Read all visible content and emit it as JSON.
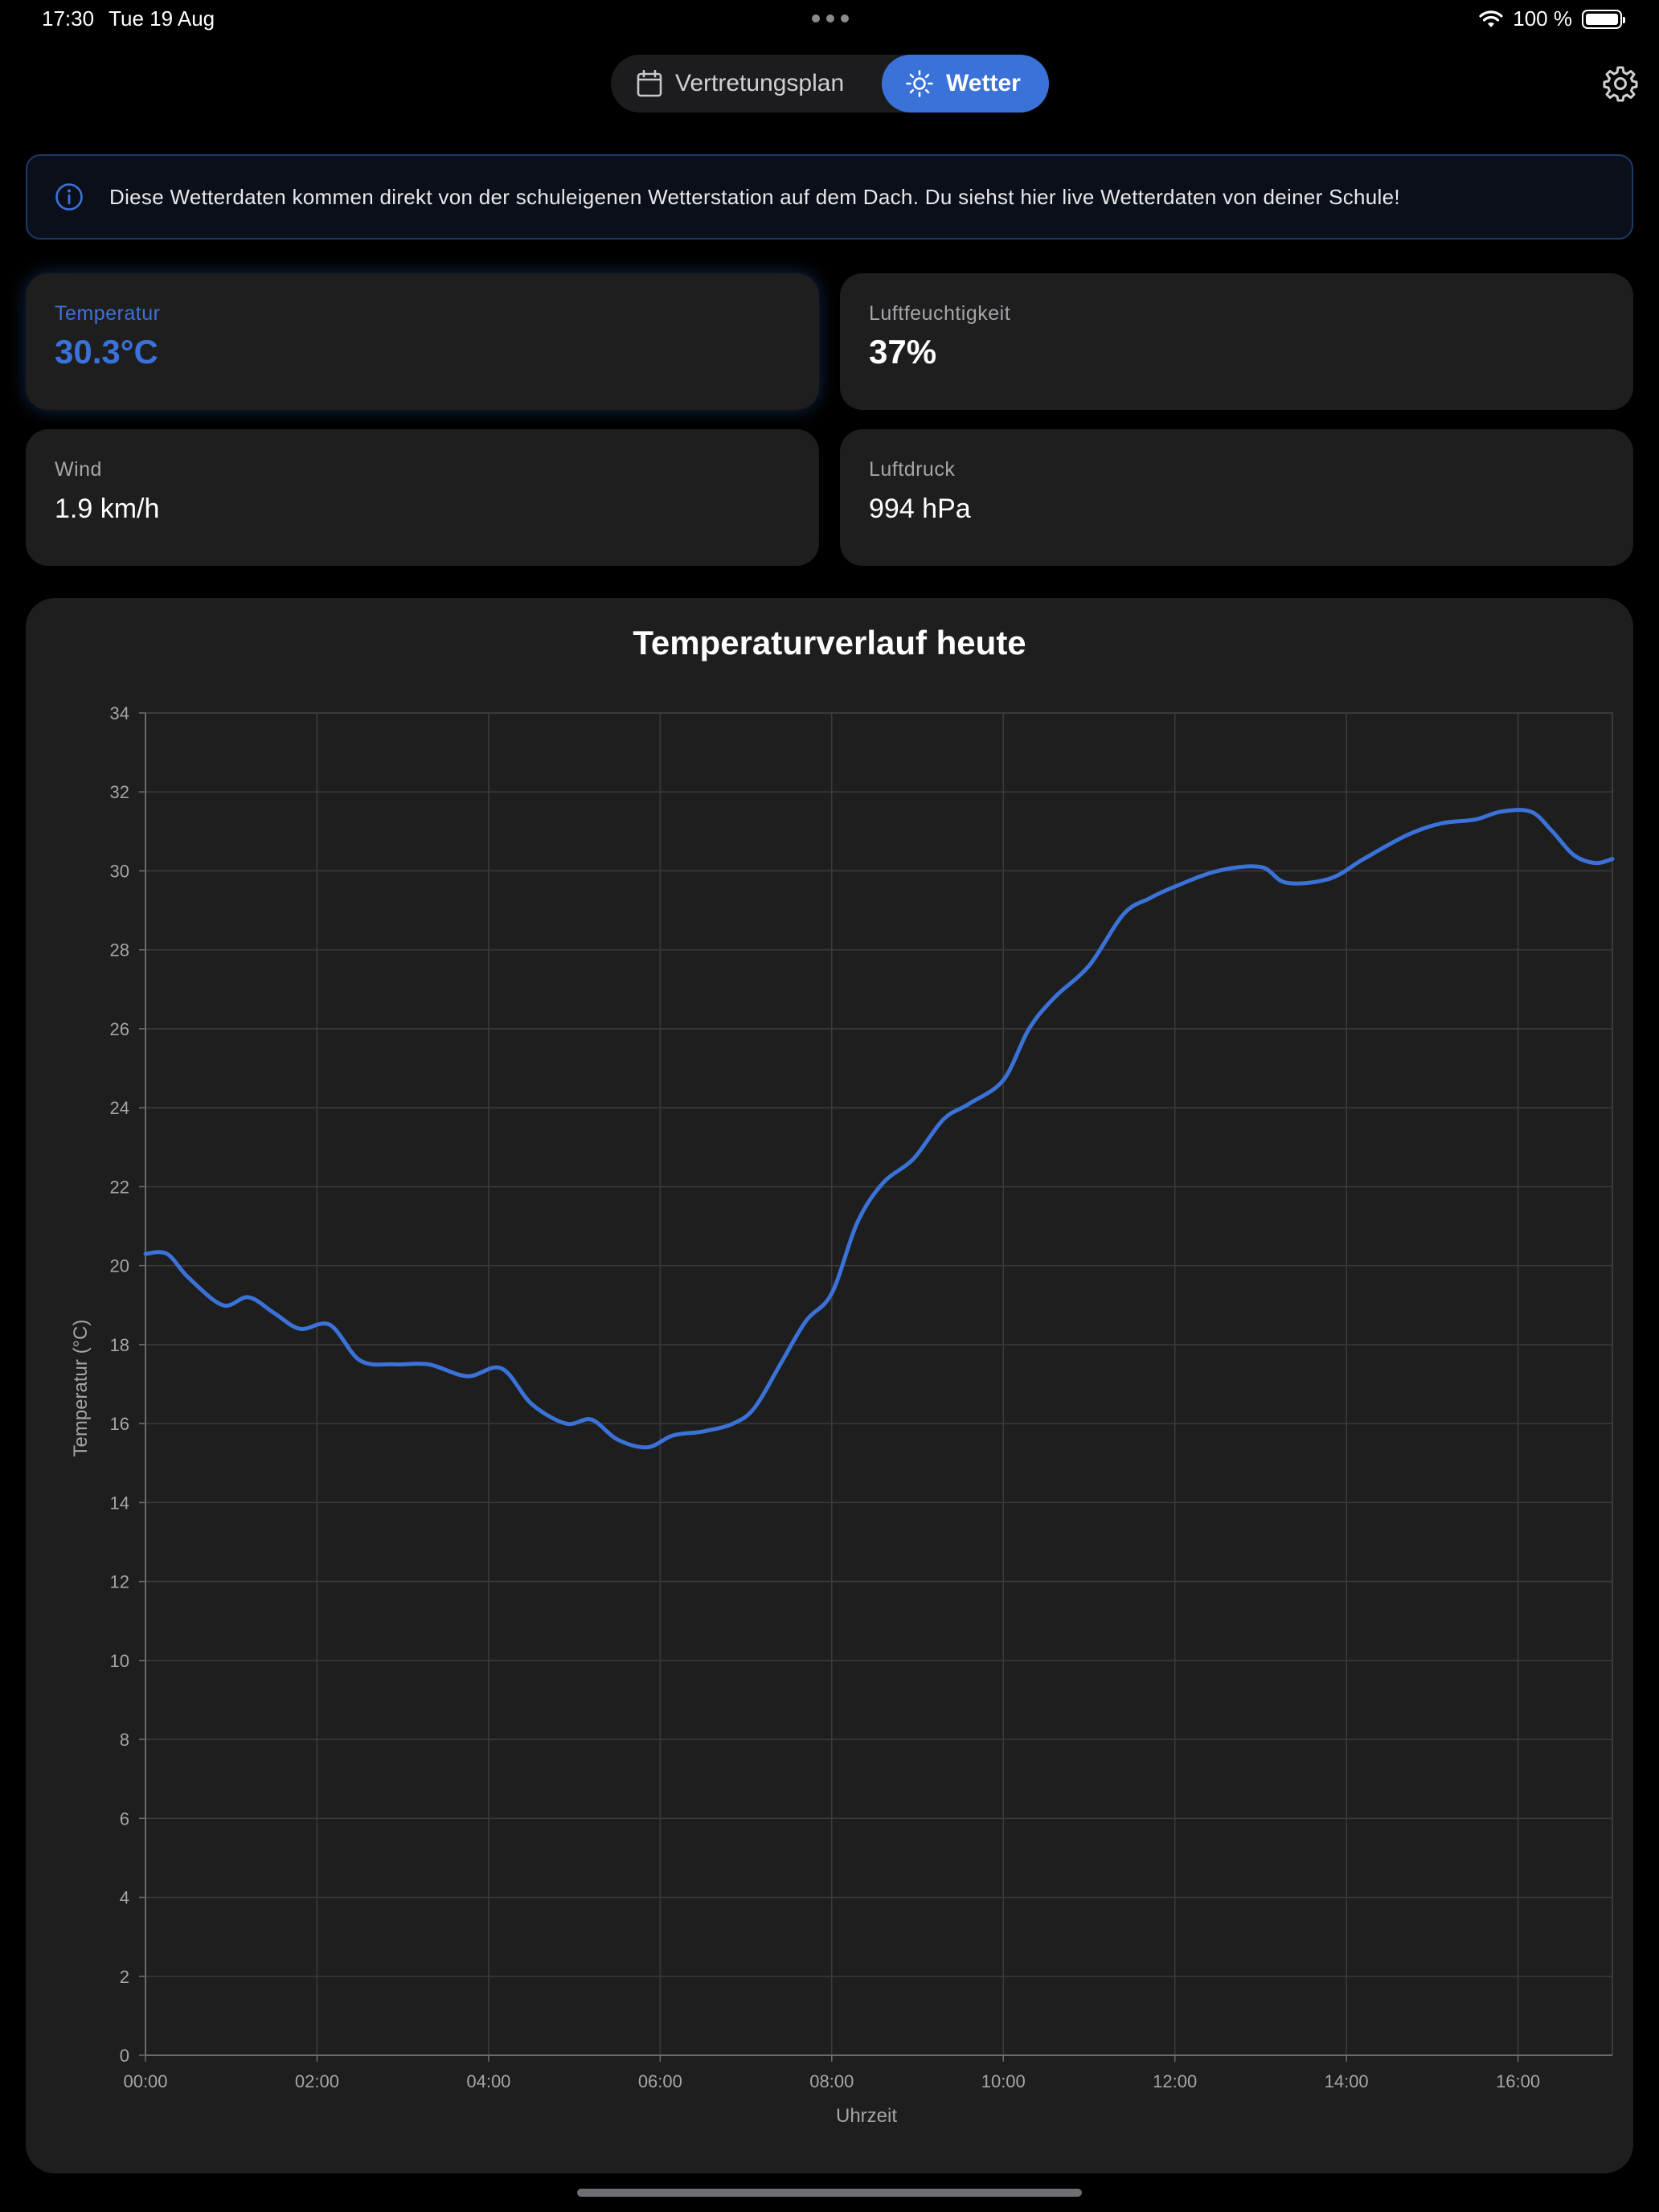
{
  "status_bar": {
    "time": "17:30",
    "date": "Tue 19 Aug",
    "battery": "100 %"
  },
  "tabs": {
    "plan_label": "Vertretungsplan",
    "weather_label": "Wetter",
    "active": "Wetter"
  },
  "info_banner": {
    "text": "Diese Wetterdaten kommen direkt von der schuleigenen Wetterstation auf dem Dach. Du siehst hier live Wetterdaten von deiner Schule!"
  },
  "metrics": {
    "temperature": {
      "label": "Temperatur",
      "value": "30.3°C"
    },
    "humidity": {
      "label": "Luftfeuchtigkeit",
      "value": "37%"
    },
    "wind": {
      "label": "Wind",
      "value": "1.9 km/h"
    },
    "pressure": {
      "label": "Luftdruck",
      "value": "994 hPa"
    }
  },
  "colors": {
    "accent": "#3a72d8",
    "background": "#000000",
    "card": "#1e1e1f"
  },
  "chart_data": {
    "type": "line",
    "title": "Temperaturverlauf heute",
    "xlabel": "Uhrzeit",
    "ylabel": "Temperatur (°C)",
    "ylim": [
      0,
      34
    ],
    "xlim": [
      0,
      17.1
    ],
    "x_ticks": [
      "00:00",
      "02:00",
      "04:00",
      "06:00",
      "08:00",
      "10:00",
      "12:00",
      "14:00",
      "16:00"
    ],
    "y_ticks": [
      0,
      2,
      4,
      6,
      8,
      10,
      12,
      14,
      16,
      18,
      20,
      22,
      24,
      26,
      28,
      30,
      32,
      34
    ],
    "grid": true,
    "series": [
      {
        "color": "#3a72d8",
        "x": [
          0,
          0.25,
          0.5,
          0.9,
          1.2,
          1.5,
          1.8,
          2.15,
          2.5,
          2.9,
          3.3,
          3.75,
          4.15,
          4.5,
          4.9,
          5.2,
          5.5,
          5.85,
          6.15,
          6.5,
          6.85,
          7.1,
          7.4,
          7.7,
          8.0,
          8.3,
          8.6,
          8.95,
          9.3,
          9.6,
          10.0,
          10.3,
          10.6,
          11.0,
          11.4,
          11.7,
          12.0,
          12.5,
          13.0,
          13.3,
          13.8,
          14.2,
          14.7,
          15.1,
          15.5,
          15.8,
          16.15,
          16.4,
          16.65,
          16.9,
          17.1
        ],
        "y": [
          20.3,
          20.3,
          19.7,
          19.0,
          19.2,
          18.8,
          18.4,
          18.5,
          17.6,
          17.5,
          17.5,
          17.2,
          17.4,
          16.5,
          16.0,
          16.1,
          15.6,
          15.4,
          15.7,
          15.8,
          16.0,
          16.4,
          17.5,
          18.6,
          19.3,
          21.1,
          22.1,
          22.7,
          23.7,
          24.1,
          24.7,
          26.0,
          26.8,
          27.6,
          28.9,
          29.3,
          29.6,
          30.0,
          30.1,
          29.7,
          29.8,
          30.3,
          30.9,
          31.2,
          31.3,
          31.5,
          31.5,
          31.0,
          30.4,
          30.2,
          30.3
        ]
      }
    ]
  }
}
